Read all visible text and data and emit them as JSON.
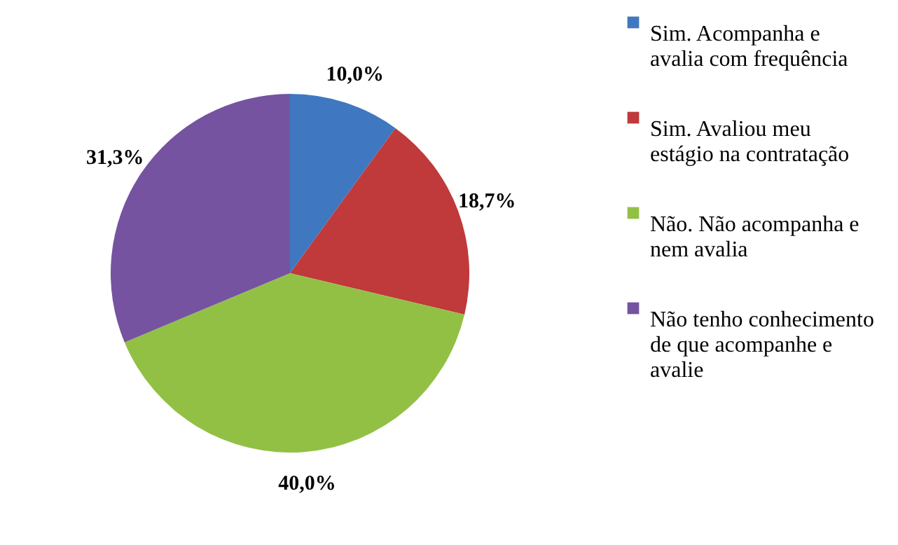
{
  "chart_data": {
    "type": "pie",
    "categories": [
      "Sim. Acompanha e avalia com frequência",
      "Sim. Avaliou meu estágio na contratação",
      "Não. Não acompanha e nem avalia",
      "Não tenho conhecimento de que acompanhe e avalie"
    ],
    "values": [
      10.0,
      18.7,
      40.0,
      31.3
    ],
    "value_labels": [
      "10,0%",
      "18,7%",
      "40,0%",
      "31,3%"
    ],
    "colors": [
      "#3f78c0",
      "#c0393b",
      "#92c045",
      "#7553a0"
    ],
    "legend": "right"
  }
}
